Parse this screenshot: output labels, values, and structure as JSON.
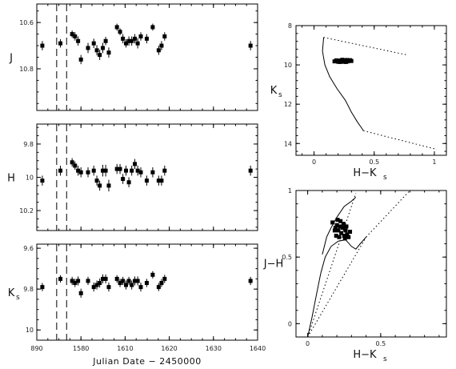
{
  "chart_data": [
    {
      "type": "scatter",
      "panel": "J",
      "ylabel": "J",
      "y_reversed": true,
      "ylim": [
        10.52,
        10.98
      ],
      "yticks": [
        "10.6",
        "10.8"
      ],
      "ytick_values": [
        10.6,
        10.8
      ],
      "xlim": [
        0,
        1
      ],
      "x_tick_positions": [
        0,
        0.2,
        0.4,
        0.6,
        0.8,
        1.0
      ],
      "x_tick_labels": [
        "890",
        "1580",
        "1610",
        "1620",
        "1630",
        "1640"
      ],
      "gap_markers": [
        0.09,
        0.135
      ],
      "points": [
        {
          "x": 0.025,
          "y": 10.7,
          "err": 0.02
        },
        {
          "x": 0.107,
          "y": 10.69,
          "err": 0.018
        },
        {
          "x": 0.16,
          "y": 10.65,
          "err": 0.015
        },
        {
          "x": 0.173,
          "y": 10.66,
          "err": 0.018
        },
        {
          "x": 0.187,
          "y": 10.68,
          "err": 0.02
        },
        {
          "x": 0.2,
          "y": 10.76,
          "err": 0.02
        },
        {
          "x": 0.232,
          "y": 10.71,
          "err": 0.022
        },
        {
          "x": 0.258,
          "y": 10.69,
          "err": 0.02
        },
        {
          "x": 0.272,
          "y": 10.72,
          "err": 0.022
        },
        {
          "x": 0.285,
          "y": 10.74,
          "err": 0.022
        },
        {
          "x": 0.299,
          "y": 10.71,
          "err": 0.022
        },
        {
          "x": 0.312,
          "y": 10.68,
          "err": 0.018
        },
        {
          "x": 0.326,
          "y": 10.73,
          "err": 0.022
        },
        {
          "x": 0.363,
          "y": 10.62,
          "err": 0.015
        },
        {
          "x": 0.377,
          "y": 10.64,
          "err": 0.015
        },
        {
          "x": 0.39,
          "y": 10.67,
          "err": 0.02
        },
        {
          "x": 0.404,
          "y": 10.69,
          "err": 0.018
        },
        {
          "x": 0.417,
          "y": 10.68,
          "err": 0.02
        },
        {
          "x": 0.43,
          "y": 10.68,
          "err": 0.02
        },
        {
          "x": 0.444,
          "y": 10.67,
          "err": 0.02
        },
        {
          "x": 0.457,
          "y": 10.69,
          "err": 0.022
        },
        {
          "x": 0.471,
          "y": 10.66,
          "err": 0.018
        },
        {
          "x": 0.498,
          "y": 10.67,
          "err": 0.02
        },
        {
          "x": 0.525,
          "y": 10.62,
          "err": 0.015
        },
        {
          "x": 0.552,
          "y": 10.72,
          "err": 0.02
        },
        {
          "x": 0.565,
          "y": 10.7,
          "err": 0.02
        },
        {
          "x": 0.579,
          "y": 10.66,
          "err": 0.018
        },
        {
          "x": 0.968,
          "y": 10.7,
          "err": 0.02
        }
      ]
    },
    {
      "type": "scatter",
      "panel": "H",
      "ylabel": "H",
      "y_reversed": true,
      "ylim": [
        9.68,
        10.32
      ],
      "yticks": [
        "9.8",
        "10",
        "10.2"
      ],
      "ytick_values": [
        9.8,
        10.0,
        10.2
      ],
      "xlim": [
        0,
        1
      ],
      "x_tick_positions": [
        0,
        0.2,
        0.4,
        0.6,
        0.8,
        1.0
      ],
      "x_tick_labels": [
        "890",
        "1580",
        "1610",
        "1620",
        "1630",
        "1640"
      ],
      "gap_markers": [
        0.09,
        0.135
      ],
      "points": [
        {
          "x": 0.025,
          "y": 10.02,
          "err": 0.03
        },
        {
          "x": 0.107,
          "y": 9.96,
          "err": 0.03
        },
        {
          "x": 0.16,
          "y": 9.91,
          "err": 0.025
        },
        {
          "x": 0.173,
          "y": 9.93,
          "err": 0.025
        },
        {
          "x": 0.187,
          "y": 9.96,
          "err": 0.03
        },
        {
          "x": 0.2,
          "y": 9.97,
          "err": 0.03
        },
        {
          "x": 0.232,
          "y": 9.97,
          "err": 0.03
        },
        {
          "x": 0.258,
          "y": 9.96,
          "err": 0.03
        },
        {
          "x": 0.272,
          "y": 10.02,
          "err": 0.03
        },
        {
          "x": 0.285,
          "y": 10.05,
          "err": 0.03
        },
        {
          "x": 0.299,
          "y": 9.96,
          "err": 0.035
        },
        {
          "x": 0.312,
          "y": 9.96,
          "err": 0.035
        },
        {
          "x": 0.326,
          "y": 10.05,
          "err": 0.035
        },
        {
          "x": 0.363,
          "y": 9.95,
          "err": 0.03
        },
        {
          "x": 0.377,
          "y": 9.95,
          "err": 0.03
        },
        {
          "x": 0.39,
          "y": 10.01,
          "err": 0.03
        },
        {
          "x": 0.404,
          "y": 9.96,
          "err": 0.03
        },
        {
          "x": 0.417,
          "y": 10.03,
          "err": 0.03
        },
        {
          "x": 0.43,
          "y": 9.96,
          "err": 0.03
        },
        {
          "x": 0.444,
          "y": 9.92,
          "err": 0.03
        },
        {
          "x": 0.457,
          "y": 9.96,
          "err": 0.03
        },
        {
          "x": 0.471,
          "y": 9.97,
          "err": 0.03
        },
        {
          "x": 0.498,
          "y": 10.02,
          "err": 0.03
        },
        {
          "x": 0.525,
          "y": 9.97,
          "err": 0.03
        },
        {
          "x": 0.552,
          "y": 10.02,
          "err": 0.03
        },
        {
          "x": 0.565,
          "y": 10.02,
          "err": 0.03
        },
        {
          "x": 0.579,
          "y": 9.96,
          "err": 0.03
        },
        {
          "x": 0.968,
          "y": 9.96,
          "err": 0.03
        }
      ]
    },
    {
      "type": "scatter",
      "panel": "Ks",
      "ylabel": "K",
      "ylabel_sub": "s",
      "y_reversed": true,
      "ylim": [
        9.58,
        10.05
      ],
      "yticks": [
        "9.6",
        "9.8",
        "10"
      ],
      "ytick_values": [
        9.6,
        9.8,
        10.0
      ],
      "xlim": [
        0,
        1
      ],
      "x_tick_positions": [
        0,
        0.2,
        0.4,
        0.6,
        0.8,
        1.0
      ],
      "x_tick_labels": [
        "890",
        "1580",
        "1610",
        "1620",
        "1630",
        "1640"
      ],
      "xlabel": "Julian Date − 2450000",
      "gap_markers": [
        0.09,
        0.135
      ],
      "points": [
        {
          "x": 0.025,
          "y": 9.79,
          "err": 0.02
        },
        {
          "x": 0.107,
          "y": 9.75,
          "err": 0.018
        },
        {
          "x": 0.16,
          "y": 9.76,
          "err": 0.02
        },
        {
          "x": 0.173,
          "y": 9.77,
          "err": 0.02
        },
        {
          "x": 0.187,
          "y": 9.76,
          "err": 0.022
        },
        {
          "x": 0.2,
          "y": 9.82,
          "err": 0.022
        },
        {
          "x": 0.232,
          "y": 9.76,
          "err": 0.02
        },
        {
          "x": 0.258,
          "y": 9.79,
          "err": 0.022
        },
        {
          "x": 0.272,
          "y": 9.78,
          "err": 0.022
        },
        {
          "x": 0.285,
          "y": 9.77,
          "err": 0.022
        },
        {
          "x": 0.299,
          "y": 9.75,
          "err": 0.022
        },
        {
          "x": 0.312,
          "y": 9.75,
          "err": 0.022
        },
        {
          "x": 0.326,
          "y": 9.79,
          "err": 0.022
        },
        {
          "x": 0.363,
          "y": 9.75,
          "err": 0.018
        },
        {
          "x": 0.377,
          "y": 9.77,
          "err": 0.02
        },
        {
          "x": 0.39,
          "y": 9.76,
          "err": 0.02
        },
        {
          "x": 0.404,
          "y": 9.78,
          "err": 0.022
        },
        {
          "x": 0.417,
          "y": 9.76,
          "err": 0.02
        },
        {
          "x": 0.43,
          "y": 9.78,
          "err": 0.022
        },
        {
          "x": 0.444,
          "y": 9.76,
          "err": 0.022
        },
        {
          "x": 0.457,
          "y": 9.76,
          "err": 0.022
        },
        {
          "x": 0.471,
          "y": 9.79,
          "err": 0.022
        },
        {
          "x": 0.498,
          "y": 9.77,
          "err": 0.02
        },
        {
          "x": 0.525,
          "y": 9.73,
          "err": 0.018
        },
        {
          "x": 0.552,
          "y": 9.79,
          "err": 0.02
        },
        {
          "x": 0.565,
          "y": 9.77,
          "err": 0.02
        },
        {
          "x": 0.579,
          "y": 9.75,
          "err": 0.02
        },
        {
          "x": 0.968,
          "y": 9.76,
          "err": 0.02
        }
      ]
    },
    {
      "type": "scatter",
      "panel": "color-magnitude",
      "ylabel": "K",
      "ylabel_sub": "s",
      "xlabel": "H−K",
      "xlabel_sub": "s",
      "y_reversed": true,
      "xlim": [
        -0.15,
        1.1
      ],
      "ylim": [
        8,
        14.6
      ],
      "xticks": [
        "0",
        "0.5",
        "1"
      ],
      "xtick_values": [
        0,
        0.5,
        1
      ],
      "yticks": [
        "8",
        "10",
        "12",
        "14"
      ],
      "ytick_values": [
        8,
        10,
        12,
        14
      ],
      "solid_track": [
        [
          0.08,
          8.6
        ],
        [
          0.07,
          9.3
        ],
        [
          0.09,
          10.0
        ],
        [
          0.13,
          10.6
        ],
        [
          0.19,
          11.2
        ],
        [
          0.26,
          11.8
        ],
        [
          0.31,
          12.4
        ],
        [
          0.36,
          12.9
        ],
        [
          0.4,
          13.25
        ],
        [
          0.41,
          13.35
        ]
      ],
      "dotted_bounds": [
        [
          [
            0.08,
            8.6
          ],
          [
            0.78,
            9.5
          ]
        ],
        [
          [
            0.41,
            13.35
          ],
          [
            1.02,
            14.3
          ]
        ]
      ],
      "points": [
        {
          "x": 0.17,
          "y": 9.82
        },
        {
          "x": 0.19,
          "y": 9.79
        },
        {
          "x": 0.2,
          "y": 9.84
        },
        {
          "x": 0.21,
          "y": 9.78
        },
        {
          "x": 0.22,
          "y": 9.82
        },
        {
          "x": 0.23,
          "y": 9.77
        },
        {
          "x": 0.24,
          "y": 9.81
        },
        {
          "x": 0.25,
          "y": 9.76
        },
        {
          "x": 0.26,
          "y": 9.8
        },
        {
          "x": 0.27,
          "y": 9.77
        },
        {
          "x": 0.28,
          "y": 9.82
        },
        {
          "x": 0.29,
          "y": 9.79
        },
        {
          "x": 0.3,
          "y": 9.76
        },
        {
          "x": 0.31,
          "y": 9.8
        },
        {
          "x": 0.215,
          "y": 9.85
        },
        {
          "x": 0.245,
          "y": 9.84
        },
        {
          "x": 0.275,
          "y": 9.75
        },
        {
          "x": 0.185,
          "y": 9.77
        },
        {
          "x": 0.265,
          "y": 9.85
        },
        {
          "x": 0.235,
          "y": 9.74
        }
      ]
    },
    {
      "type": "scatter",
      "panel": "color-color",
      "ylabel": "J−H",
      "xlabel": "H−K",
      "xlabel_sub": "s",
      "xlim": [
        -0.08,
        0.95
      ],
      "ylim": [
        -0.1,
        1.0
      ],
      "xticks": [
        "0",
        "0.5"
      ],
      "xtick_values": [
        0,
        0.5
      ],
      "yticks": [
        "0",
        "0.5",
        "1"
      ],
      "ytick_values": [
        0,
        0.5,
        1
      ],
      "solid_track": [
        [
          0.0,
          -0.1
        ],
        [
          0.03,
          0.05
        ],
        [
          0.06,
          0.22
        ],
        [
          0.09,
          0.38
        ],
        [
          0.12,
          0.5
        ],
        [
          0.16,
          0.58
        ],
        [
          0.21,
          0.62
        ],
        [
          0.26,
          0.63
        ],
        [
          0.3,
          0.58
        ],
        [
          0.33,
          0.56
        ],
        [
          0.36,
          0.6
        ],
        [
          0.4,
          0.65
        ]
      ],
      "solid_upper": [
        [
          0.1,
          0.52
        ],
        [
          0.13,
          0.65
        ],
        [
          0.16,
          0.72
        ],
        [
          0.2,
          0.8
        ],
        [
          0.25,
          0.88
        ],
        [
          0.3,
          0.92
        ],
        [
          0.33,
          0.95
        ]
      ],
      "dotted_bounds": [
        [
          [
            0.0,
            -0.1
          ],
          [
            0.33,
            0.98
          ]
        ],
        [
          [
            0.4,
            0.65
          ],
          [
            0.7,
            1.0
          ]
        ],
        [
          [
            0.0,
            -0.1
          ],
          [
            0.4,
            0.65
          ]
        ]
      ],
      "points": [
        {
          "x": 0.17,
          "y": 0.76
        },
        {
          "x": 0.19,
          "y": 0.72
        },
        {
          "x": 0.2,
          "y": 0.74
        },
        {
          "x": 0.21,
          "y": 0.7
        },
        {
          "x": 0.22,
          "y": 0.73
        },
        {
          "x": 0.23,
          "y": 0.68
        },
        {
          "x": 0.24,
          "y": 0.72
        },
        {
          "x": 0.25,
          "y": 0.66
        },
        {
          "x": 0.26,
          "y": 0.7
        },
        {
          "x": 0.27,
          "y": 0.67
        },
        {
          "x": 0.28,
          "y": 0.65
        },
        {
          "x": 0.29,
          "y": 0.69
        },
        {
          "x": 0.215,
          "y": 0.65
        },
        {
          "x": 0.245,
          "y": 0.75
        },
        {
          "x": 0.195,
          "y": 0.66
        },
        {
          "x": 0.265,
          "y": 0.73
        },
        {
          "x": 0.225,
          "y": 0.77
        },
        {
          "x": 0.185,
          "y": 0.7
        },
        {
          "x": 0.255,
          "y": 0.64
        },
        {
          "x": 0.205,
          "y": 0.78
        }
      ]
    }
  ]
}
